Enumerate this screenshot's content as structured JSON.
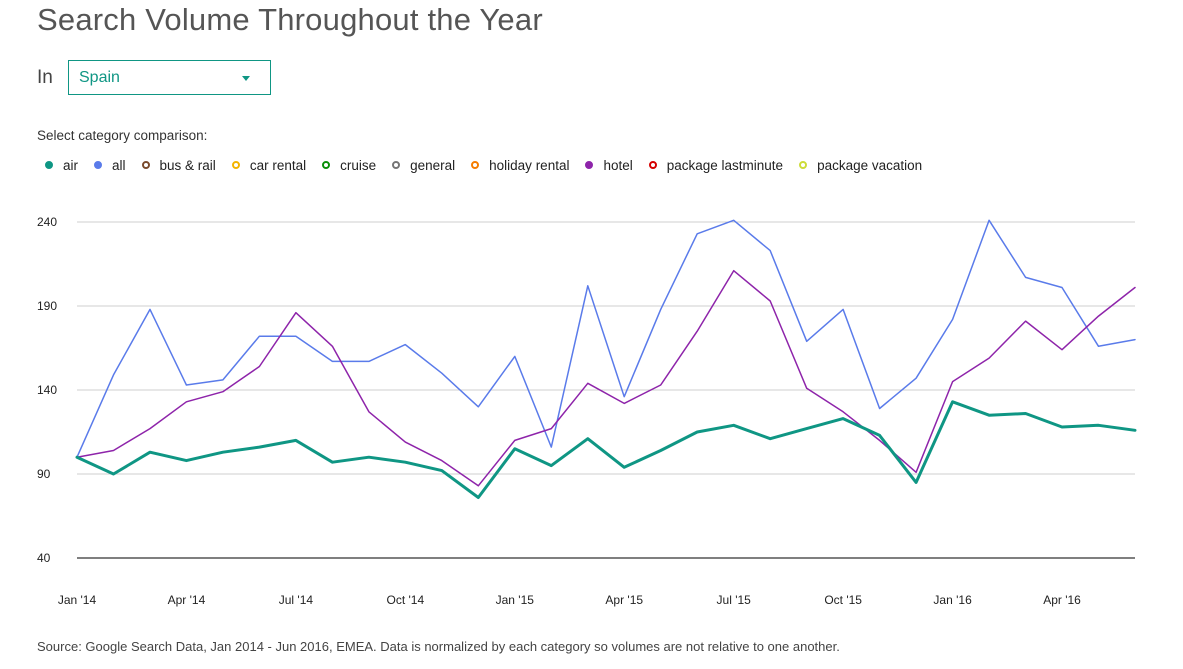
{
  "title": "Search Volume Throughout the Year",
  "filter": {
    "label": "In",
    "selected": "Spain",
    "accent_color": "#0f9684"
  },
  "comparison_label": "Select category comparison:",
  "legend": [
    {
      "label": "air",
      "color": "#0f9684",
      "active": true
    },
    {
      "label": "all",
      "color": "#5a7bea",
      "active": true
    },
    {
      "label": "bus & rail",
      "color": "#7a4a2c",
      "active": false
    },
    {
      "label": "car rental",
      "color": "#f4b400",
      "active": false
    },
    {
      "label": "cruise",
      "color": "#0a8f08",
      "active": false
    },
    {
      "label": "general",
      "color": "#757575",
      "active": false
    },
    {
      "label": "holiday rental",
      "color": "#f57c00",
      "active": false
    },
    {
      "label": "hotel",
      "color": "#8e24aa",
      "active": true
    },
    {
      "label": "package lastminute",
      "color": "#d50000",
      "active": false
    },
    {
      "label": "package vacation",
      "color": "#cddc39",
      "active": false
    }
  ],
  "chart_data": {
    "type": "line",
    "x": [
      "Jan '14",
      "Feb '14",
      "Mar '14",
      "Apr '14",
      "May '14",
      "Jun '14",
      "Jul '14",
      "Aug '14",
      "Sep '14",
      "Oct '14",
      "Nov '14",
      "Dec '14",
      "Jan '15",
      "Feb '15",
      "Mar '15",
      "Apr '15",
      "May '15",
      "Jun '15",
      "Jul '15",
      "Aug '15",
      "Sep '15",
      "Oct '15",
      "Nov '15",
      "Dec '15",
      "Jan '16",
      "Feb '16",
      "Mar '16",
      "Apr '16",
      "May '16",
      "Jun '16"
    ],
    "x_tick_labels": [
      "Jan '14",
      "Apr '14",
      "Jul '14",
      "Oct '14",
      "Jan '15",
      "Apr '15",
      "Jul '15",
      "Oct '15",
      "Jan '16",
      "Apr '16"
    ],
    "x_tick_indices": [
      0,
      3,
      6,
      9,
      12,
      15,
      18,
      21,
      24,
      27
    ],
    "y_ticks": [
      40,
      90,
      140,
      190,
      240
    ],
    "ylim": [
      40,
      240
    ],
    "grid": true,
    "series": [
      {
        "name": "air",
        "color": "#0f9684",
        "width": 3,
        "values": [
          100,
          90,
          103,
          98,
          103,
          106,
          110,
          97,
          100,
          97,
          92,
          76,
          105,
          95,
          111,
          94,
          104,
          115,
          119,
          111,
          117,
          123,
          113,
          85,
          133,
          125,
          126,
          118,
          119,
          116
        ]
      },
      {
        "name": "all",
        "color": "#5a7bea",
        "width": 1.5,
        "values": [
          100,
          149,
          188,
          143,
          146,
          172,
          172,
          157,
          157,
          167,
          150,
          130,
          160,
          106,
          202,
          136,
          188,
          233,
          241,
          223,
          169,
          188,
          129,
          147,
          182,
          241,
          207,
          201,
          166,
          170
        ]
      },
      {
        "name": "hotel",
        "color": "#8e24aa",
        "width": 1.5,
        "values": [
          100,
          104,
          117,
          133,
          139,
          154,
          186,
          166,
          127,
          109,
          98,
          83,
          110,
          117,
          144,
          132,
          143,
          175,
          211,
          193,
          141,
          127,
          110,
          91,
          145,
          159,
          181,
          164,
          184,
          201
        ]
      }
    ]
  },
  "source": "Source: Google Search Data, Jan 2014 - Jun 2016, EMEA. Data is normalized by each category so volumes are not relative to one another."
}
